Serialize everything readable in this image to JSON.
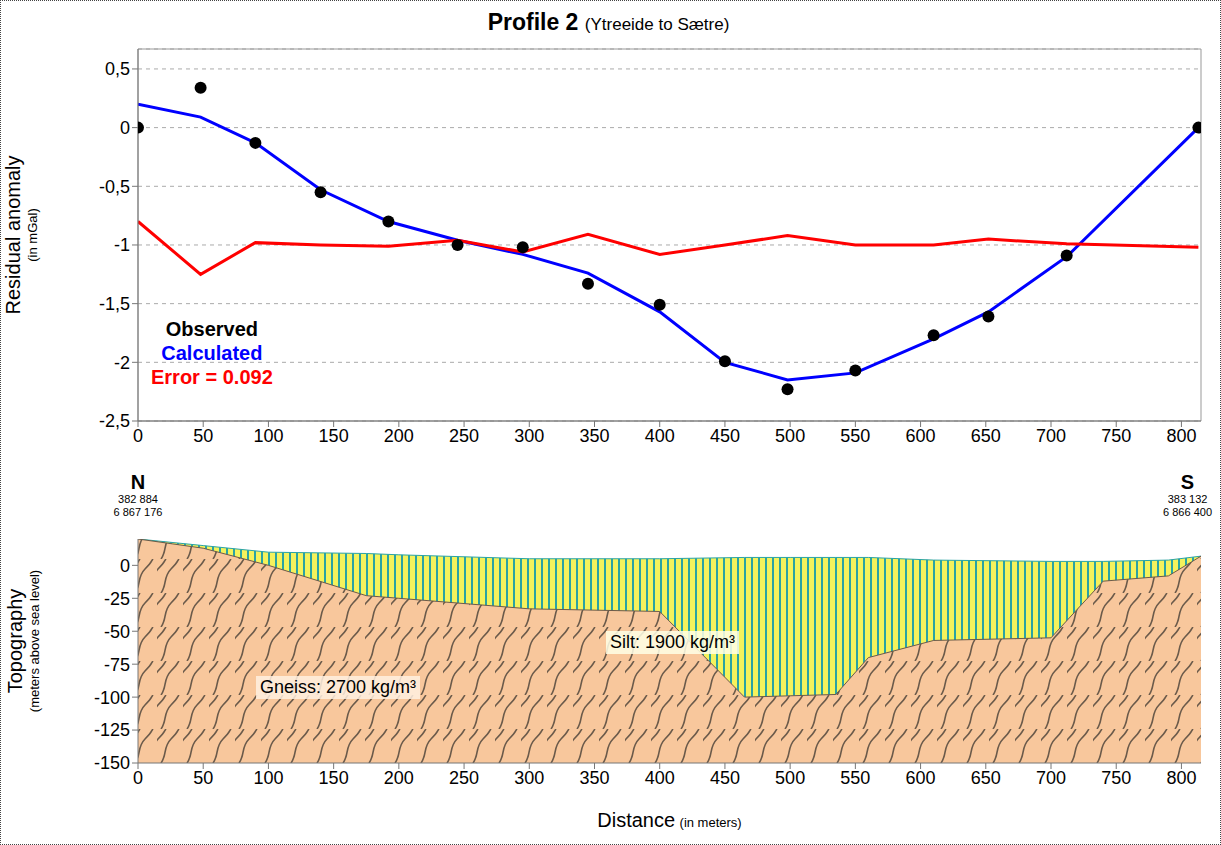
{
  "chart_data": [
    {
      "type": "line",
      "title": "Profile 2",
      "subtitle": "(Ytreeide to Sætre)",
      "y_label": "Residual anomaly",
      "y_label_unit": "(in mGal)",
      "x": [
        0,
        48,
        90,
        140,
        192,
        245,
        295,
        345,
        400,
        450,
        498,
        550,
        610,
        652,
        712,
        813
      ],
      "series": [
        {
          "name": "Observed",
          "type": "scatter",
          "marker": "circle",
          "color": "#000000",
          "values": [
            0,
            0.34,
            -0.13,
            -0.55,
            -0.8,
            -1.0,
            -1.02,
            -1.33,
            -1.51,
            -1.99,
            -2.23,
            -2.07,
            -1.77,
            -1.61,
            -1.09,
            0
          ]
        },
        {
          "name": "Calculated",
          "type": "line",
          "color": "#0000ff",
          "values": [
            0.2,
            0.09,
            -0.13,
            -0.53,
            -0.8,
            -0.96,
            -1.08,
            -1.24,
            -1.57,
            -2.0,
            -2.15,
            -2.09,
            -1.8,
            -1.57,
            -1.1,
            0
          ]
        },
        {
          "name": "Error = 0.092",
          "type": "line",
          "color": "#ff0000",
          "values": [
            -0.8,
            -1.25,
            -0.98,
            -1.0,
            -1.01,
            -0.96,
            -1.06,
            -0.91,
            -1.08,
            -1.0,
            -0.92,
            -1.0,
            -1.0,
            -0.95,
            -0.99,
            -1.02
          ]
        }
      ],
      "xlim": [
        0,
        815
      ],
      "xticks": [
        0,
        50,
        100,
        150,
        200,
        250,
        300,
        350,
        400,
        450,
        500,
        550,
        600,
        650,
        700,
        750,
        800
      ],
      "ylim": [
        -2.5,
        0.67
      ],
      "yticks": [
        {
          "value": 0.5,
          "label": "0,5"
        },
        0,
        {
          "value": -0.5,
          "label": "-0,5"
        },
        -1,
        {
          "value": -1.5,
          "label": "-1,5"
        },
        -2,
        {
          "value": -2.5,
          "label": "-2,5"
        }
      ],
      "grid": true,
      "legend": "left"
    },
    {
      "type": "area",
      "y_label": "Topography",
      "y_label_unit": "(meters above sea level)",
      "x_label": "Distance",
      "x_label_unit": "(in meters)",
      "x": [
        0,
        50,
        100,
        175,
        200,
        300,
        400,
        465,
        500,
        535,
        560,
        610,
        700,
        740,
        790,
        815
      ],
      "series": [
        {
          "name": "Silt: 1900 kg/m³",
          "color": "#f4f25c",
          "values": [
            20,
            15,
            10,
            9,
            8,
            5,
            5,
            6,
            6,
            6,
            6,
            4,
            3,
            3,
            4,
            7
          ]
        },
        {
          "name": "Gneiss: 2700 kg/m³",
          "color": "#f8c79c",
          "values": [
            20,
            13,
            0,
            -23,
            -25,
            -33,
            -35,
            -100,
            -99,
            -98,
            -70,
            -57,
            -55,
            -12,
            -8,
            7
          ]
        }
      ],
      "xlim": [
        0,
        815
      ],
      "xticks": [
        0,
        50,
        100,
        150,
        200,
        250,
        300,
        350,
        400,
        450,
        500,
        550,
        600,
        650,
        700,
        750,
        800
      ],
      "ylim": [
        -150,
        20
      ],
      "yticks": [
        0,
        -25,
        -50,
        -75,
        -100,
        -125,
        -150
      ],
      "grid": false,
      "annotations": [
        {
          "text": "N",
          "coordinates": [
            "382 884",
            "6 867 176"
          ]
        },
        {
          "text": "S",
          "coordinates": [
            "383 132",
            "6 866 400"
          ]
        }
      ]
    }
  ]
}
